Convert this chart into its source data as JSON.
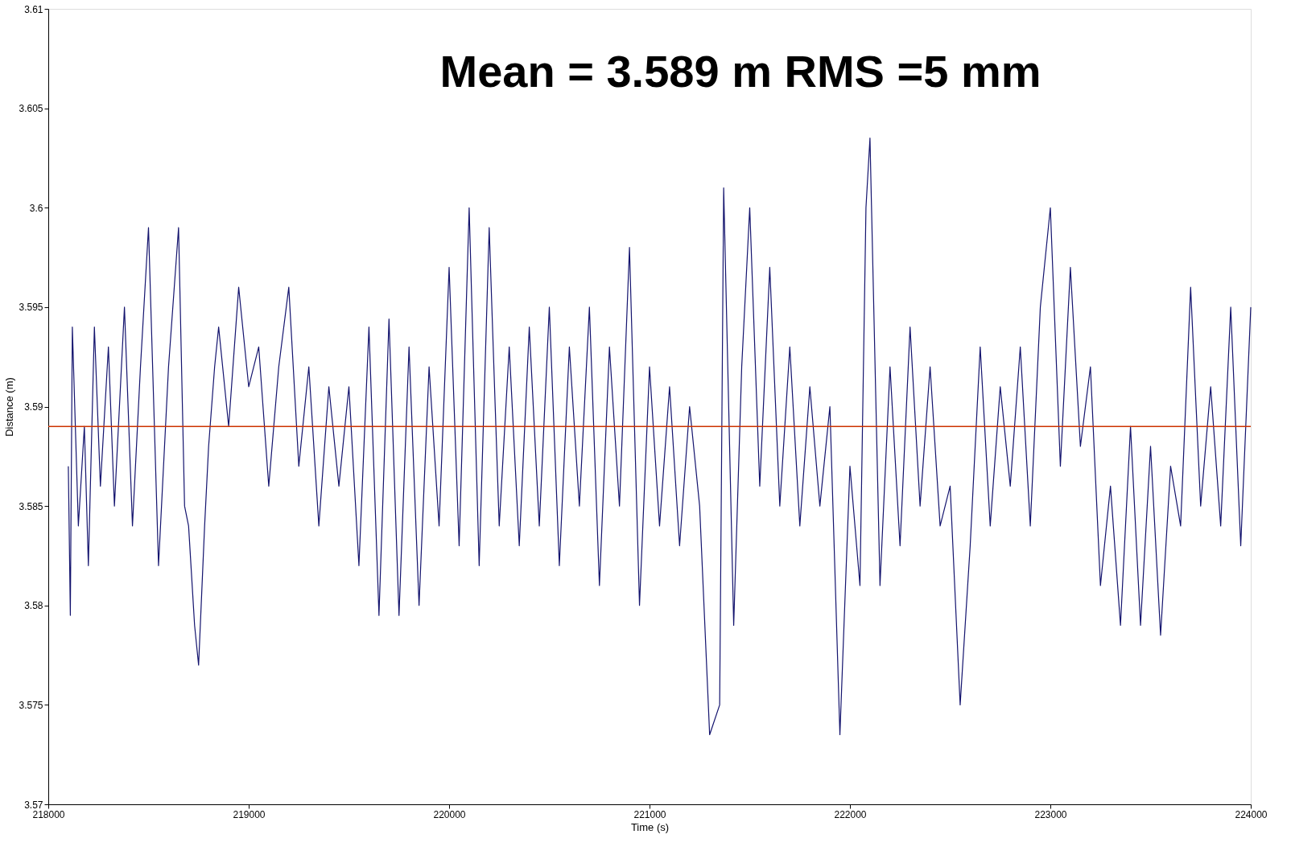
{
  "chart_data": {
    "type": "line",
    "xlabel": "Time (s)",
    "ylabel": "Distance (m)",
    "annotations": [
      "Mean = 3.589 m   RMS =5 mm"
    ],
    "x": [
      218100,
      218110,
      218120,
      218150,
      218180,
      218200,
      218230,
      218260,
      218300,
      218330,
      218380,
      218420,
      218460,
      218500,
      218550,
      218600,
      218650,
      218680,
      218700,
      218730,
      218750,
      218780,
      218800,
      218830,
      218850,
      218900,
      218950,
      219000,
      219050,
      219100,
      219150,
      219200,
      219250,
      219300,
      219350,
      219400,
      219450,
      219500,
      219550,
      219600,
      219650,
      219700,
      219750,
      219800,
      219850,
      219900,
      219950,
      220000,
      220050,
      220100,
      220150,
      220200,
      220250,
      220300,
      220350,
      220400,
      220450,
      220500,
      220550,
      220600,
      220650,
      220700,
      220750,
      220800,
      220850,
      220900,
      220950,
      221000,
      221050,
      221100,
      221150,
      221200,
      221250,
      221300,
      221350,
      221370,
      221420,
      221460,
      221500,
      221550,
      221600,
      221650,
      221700,
      221750,
      221800,
      221850,
      221900,
      221950,
      222000,
      222050,
      222080,
      222100,
      222150,
      222200,
      222250,
      222300,
      222350,
      222400,
      222450,
      222500,
      222550,
      222600,
      222650,
      222700,
      222750,
      222800,
      222850,
      222900,
      222950,
      223000,
      223050,
      223100,
      223150,
      223200,
      223250,
      223300,
      223350,
      223400,
      223450,
      223500,
      223550,
      223600,
      223650,
      223700,
      223750,
      223800,
      223850,
      223900,
      223950,
      224000
    ],
    "series": [
      {
        "color": "#14146e",
        "values": [
          3.587,
          3.5795,
          3.594,
          3.584,
          3.589,
          3.582,
          3.594,
          3.586,
          3.593,
          3.585,
          3.595,
          3.584,
          3.592,
          3.599,
          3.582,
          3.592,
          3.599,
          3.585,
          3.584,
          3.579,
          3.577,
          3.584,
          3.588,
          3.592,
          3.594,
          3.589,
          3.596,
          3.591,
          3.593,
          3.586,
          3.592,
          3.596,
          3.587,
          3.592,
          3.584,
          3.591,
          3.586,
          3.591,
          3.582,
          3.594,
          3.5795,
          3.5944,
          3.5795,
          3.593,
          3.58,
          3.592,
          3.584,
          3.597,
          3.583,
          3.6,
          3.582,
          3.599,
          3.584,
          3.593,
          3.583,
          3.594,
          3.584,
          3.595,
          3.582,
          3.593,
          3.585,
          3.595,
          3.581,
          3.593,
          3.585,
          3.598,
          3.58,
          3.592,
          3.584,
          3.591,
          3.583,
          3.59,
          3.585,
          3.5735,
          3.575,
          3.601,
          3.579,
          3.592,
          3.6,
          3.586,
          3.597,
          3.585,
          3.593,
          3.584,
          3.591,
          3.585,
          3.59,
          3.5735,
          3.587,
          3.581,
          3.6,
          3.6035,
          3.581,
          3.592,
          3.583,
          3.594,
          3.585,
          3.592,
          3.584,
          3.586,
          3.575,
          3.583,
          3.593,
          3.584,
          3.591,
          3.586,
          3.593,
          3.584,
          3.595,
          3.6,
          3.587,
          3.597,
          3.588,
          3.592,
          3.581,
          3.586,
          3.579,
          3.589,
          3.579,
          3.588,
          3.5785,
          3.587,
          3.584,
          3.596,
          3.585,
          3.591,
          3.584,
          3.595,
          3.583,
          3.595
        ]
      }
    ],
    "xlim": [
      218000,
      224000
    ],
    "xticks": [
      218000,
      219000,
      220000,
      221000,
      222000,
      223000,
      224000
    ],
    "ylim": [
      3.57,
      3.61
    ],
    "yticks": [
      3.57,
      3.575,
      3.58,
      3.585,
      3.59,
      3.595,
      3.6,
      3.605,
      3.61
    ],
    "ref_lines": [
      {
        "axis": "y",
        "value": 3.589,
        "color": "#cc3300"
      }
    ],
    "grid": false
  }
}
